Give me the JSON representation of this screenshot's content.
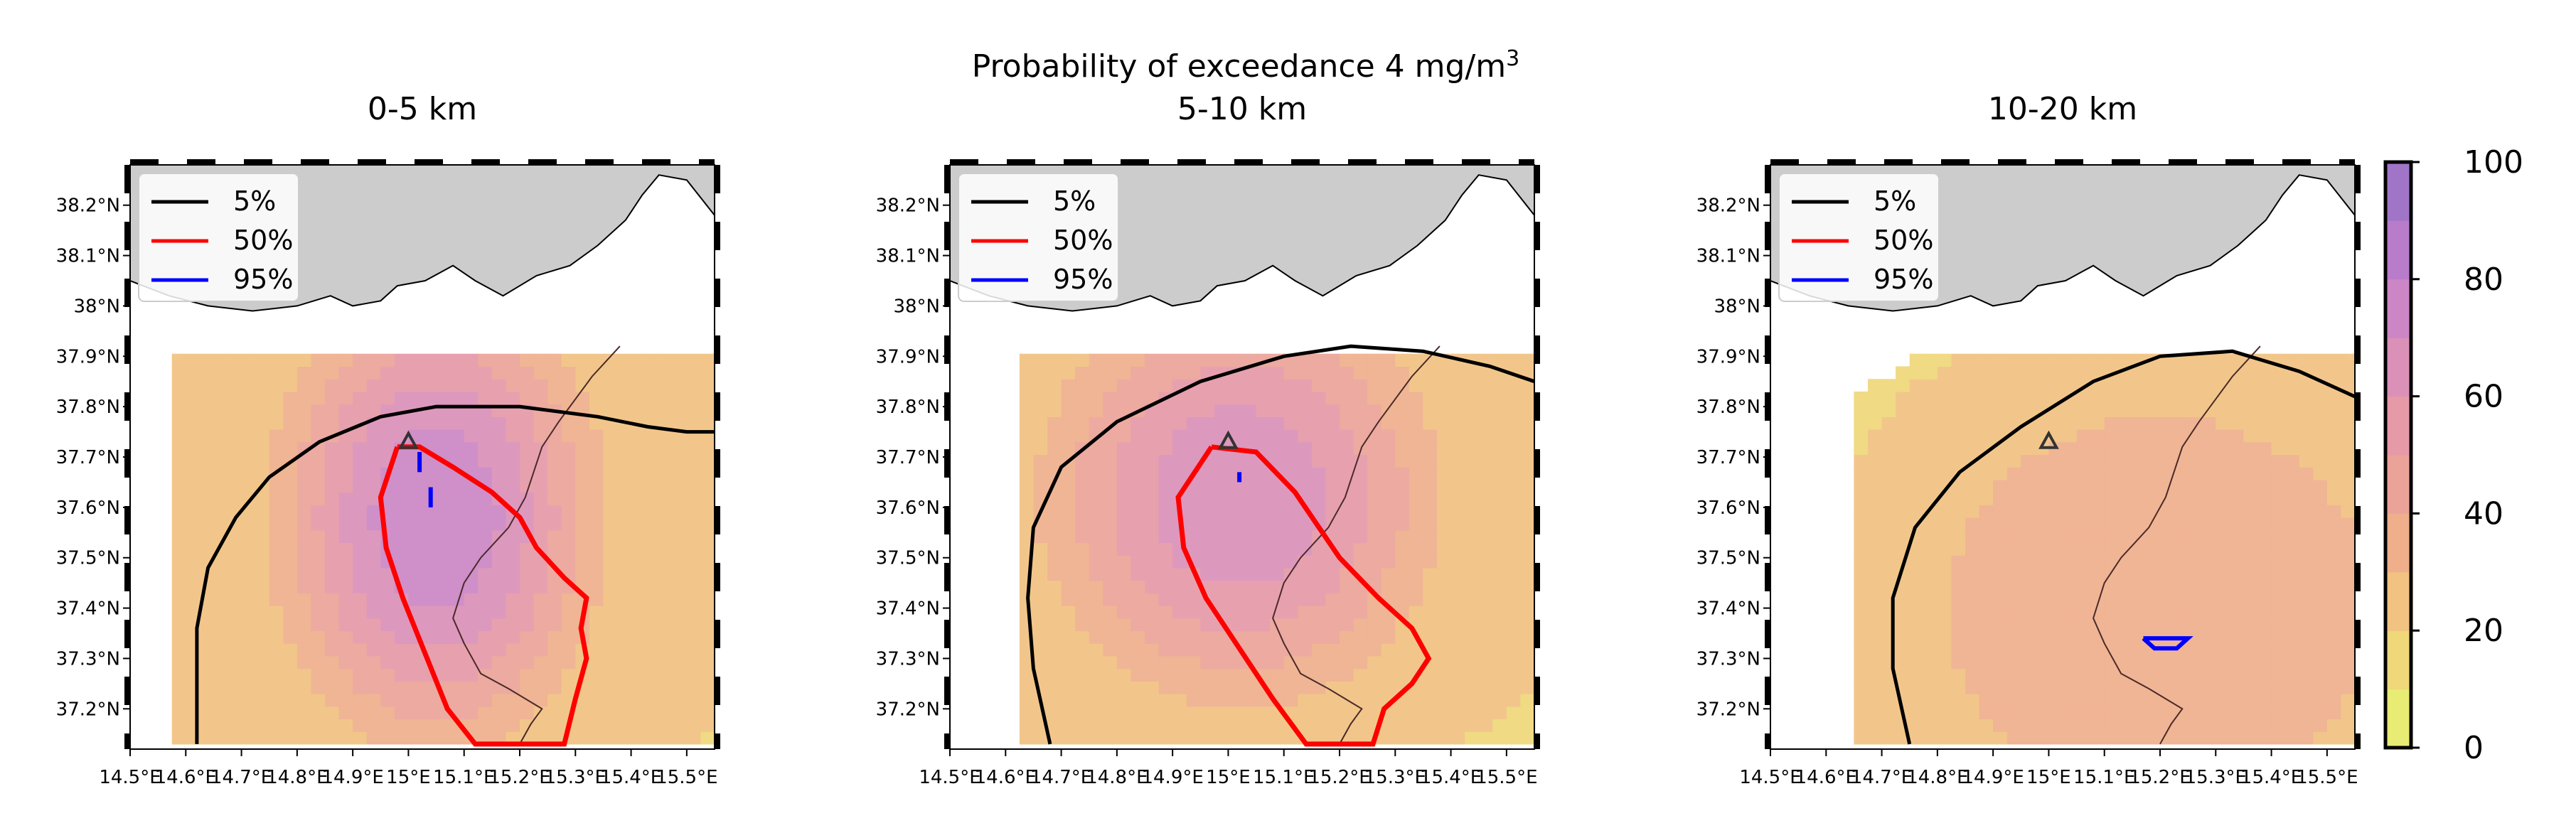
{
  "figure": {
    "suptitle": "Probability of exceedance 4 mg/m",
    "suptitle_superscript": "3"
  },
  "panels": [
    {
      "title": "0-5 km",
      "legend": [
        {
          "label": "5%",
          "color": "#000000"
        },
        {
          "label": "50%",
          "color": "#ff0000"
        },
        {
          "label": "95%",
          "color": "#0000ff"
        }
      ],
      "contours": {
        "p5": [
          [
            14.62,
            37.13
          ],
          [
            14.62,
            37.36
          ],
          [
            14.64,
            37.48
          ],
          [
            14.69,
            37.58
          ],
          [
            14.75,
            37.66
          ],
          [
            14.84,
            37.73
          ],
          [
            14.95,
            37.78
          ],
          [
            15.05,
            37.8
          ],
          [
            15.2,
            37.8
          ],
          [
            15.34,
            37.78
          ],
          [
            15.43,
            37.76
          ],
          [
            15.5,
            37.75
          ],
          [
            15.55,
            37.75
          ]
        ],
        "p50": [
          [
            14.98,
            37.72
          ],
          [
            15.02,
            37.72
          ],
          [
            15.08,
            37.68
          ],
          [
            15.15,
            37.63
          ],
          [
            15.2,
            37.58
          ],
          [
            15.23,
            37.52
          ],
          [
            15.28,
            37.46
          ],
          [
            15.32,
            37.42
          ],
          [
            15.31,
            37.36
          ],
          [
            15.32,
            37.3
          ],
          [
            15.3,
            37.22
          ],
          [
            15.28,
            37.13
          ],
          [
            15.12,
            37.13
          ],
          [
            15.07,
            37.2
          ],
          [
            15.03,
            37.31
          ],
          [
            14.99,
            37.42
          ],
          [
            14.96,
            37.52
          ],
          [
            14.95,
            37.62
          ],
          [
            14.98,
            37.72
          ]
        ],
        "p95_segments": [
          [
            [
              15.02,
              37.71
            ],
            [
              15.02,
              37.67
            ]
          ],
          [
            [
              15.04,
              37.64
            ],
            [
              15.04,
              37.6
            ]
          ]
        ]
      },
      "field": {
        "peak_lon": 15.05,
        "peak_lat": 37.58,
        "peak_value": 80,
        "decay_km_x": 0.22,
        "decay_km_y": 0.34,
        "shape": "elongated-south"
      }
    },
    {
      "title": "5-10 km",
      "legend": [
        {
          "label": "5%",
          "color": "#000000"
        },
        {
          "label": "50%",
          "color": "#ff0000"
        },
        {
          "label": "95%",
          "color": "#0000ff"
        }
      ],
      "contours": {
        "p5": [
          [
            14.68,
            37.13
          ],
          [
            14.65,
            37.28
          ],
          [
            14.64,
            37.42
          ],
          [
            14.65,
            37.56
          ],
          [
            14.7,
            37.68
          ],
          [
            14.8,
            37.77
          ],
          [
            14.95,
            37.85
          ],
          [
            15.1,
            37.9
          ],
          [
            15.22,
            37.92
          ],
          [
            15.35,
            37.91
          ],
          [
            15.47,
            37.88
          ],
          [
            15.55,
            37.85
          ]
        ],
        "p50": [
          [
            14.97,
            37.72
          ],
          [
            15.05,
            37.71
          ],
          [
            15.12,
            37.63
          ],
          [
            15.2,
            37.5
          ],
          [
            15.27,
            37.42
          ],
          [
            15.33,
            37.36
          ],
          [
            15.36,
            37.3
          ],
          [
            15.33,
            37.25
          ],
          [
            15.28,
            37.2
          ],
          [
            15.26,
            37.13
          ],
          [
            15.14,
            37.13
          ],
          [
            15.08,
            37.22
          ],
          [
            15.02,
            37.32
          ],
          [
            14.96,
            37.42
          ],
          [
            14.92,
            37.52
          ],
          [
            14.91,
            37.62
          ],
          [
            14.97,
            37.72
          ]
        ],
        "p95_segments": [
          [
            [
              15.02,
              37.67
            ],
            [
              15.02,
              37.65
            ]
          ]
        ]
      },
      "field": {
        "peak_lon": 15.02,
        "peak_lat": 37.62,
        "peak_value": 70,
        "decay_km_x": 0.28,
        "decay_km_y": 0.32,
        "shape": "round"
      }
    },
    {
      "title": "10-20 km",
      "legend": [
        {
          "label": "5%",
          "color": "#000000"
        },
        {
          "label": "50%",
          "color": "#ff0000"
        },
        {
          "label": "95%",
          "color": "#0000ff"
        }
      ],
      "contours": {
        "p5": [
          [
            14.75,
            37.13
          ],
          [
            14.72,
            37.28
          ],
          [
            14.72,
            37.42
          ],
          [
            14.76,
            37.56
          ],
          [
            14.84,
            37.67
          ],
          [
            14.95,
            37.76
          ],
          [
            15.08,
            37.85
          ],
          [
            15.2,
            37.9
          ],
          [
            15.33,
            37.91
          ],
          [
            15.45,
            37.87
          ],
          [
            15.55,
            37.82
          ]
        ],
        "p50": [],
        "p95_segments": [
          [
            [
              15.17,
              37.34
            ],
            [
              15.25,
              37.34
            ],
            [
              15.23,
              37.32
            ],
            [
              15.19,
              37.32
            ],
            [
              15.17,
              37.34
            ]
          ]
        ]
      },
      "field": {
        "peak_lon": 15.2,
        "peak_lat": 37.4,
        "peak_value": 38,
        "decay_km_x": 0.55,
        "decay_km_y": 0.55,
        "shape": "broad"
      }
    }
  ],
  "map": {
    "lon_range": [
      14.5,
      15.55
    ],
    "lat_range": [
      37.12,
      38.28
    ],
    "data_lon_range": [
      14.5,
      15.55
    ],
    "data_lat_range": [
      37.13,
      37.9
    ],
    "lon_ticks": [
      "14.5°E",
      "14.6°E",
      "14.7°E",
      "14.8°E",
      "14.9°E",
      "15°E",
      "15.1°E",
      "15.2°E",
      "15.3°E",
      "15.4°E",
      "15.5°E"
    ],
    "lon_tick_values": [
      14.5,
      14.6,
      14.7,
      14.8,
      14.9,
      15.0,
      15.1,
      15.2,
      15.3,
      15.4,
      15.5
    ],
    "lat_ticks": [
      "38.2°N",
      "38.1°N",
      "38°N",
      "37.9°N",
      "37.8°N",
      "37.7°N",
      "37.6°N",
      "37.5°N",
      "37.4°N",
      "37.3°N",
      "37.2°N"
    ],
    "lat_tick_values": [
      38.2,
      38.1,
      38.0,
      37.9,
      37.8,
      37.7,
      37.6,
      37.5,
      37.4,
      37.3,
      37.2
    ],
    "land_color": "#cccccc",
    "volcano": {
      "lon": 15.0,
      "lat": 37.73,
      "marker": "triangle"
    },
    "calabria_coast": [
      [
        14.5,
        38.28
      ],
      [
        15.55,
        38.28
      ],
      [
        15.55,
        38.18
      ],
      [
        15.5,
        38.25
      ],
      [
        15.45,
        38.26
      ],
      [
        15.42,
        38.22
      ],
      [
        15.39,
        38.17
      ],
      [
        15.34,
        38.12
      ],
      [
        15.29,
        38.08
      ],
      [
        15.23,
        38.06
      ],
      [
        15.17,
        38.02
      ],
      [
        15.12,
        38.05
      ],
      [
        15.08,
        38.08
      ],
      [
        15.03,
        38.05
      ],
      [
        14.98,
        38.04
      ],
      [
        14.95,
        38.01
      ],
      [
        14.9,
        38.0
      ],
      [
        14.86,
        38.02
      ],
      [
        14.8,
        38.0
      ],
      [
        14.72,
        37.99
      ],
      [
        14.64,
        38.0
      ],
      [
        14.57,
        38.02
      ],
      [
        14.5,
        38.05
      ]
    ],
    "sicily_coast": [
      [
        15.38,
        37.92
      ],
      [
        15.33,
        37.86
      ],
      [
        15.27,
        37.77
      ],
      [
        15.24,
        37.72
      ],
      [
        15.21,
        37.62
      ],
      [
        15.18,
        37.56
      ],
      [
        15.13,
        37.5
      ],
      [
        15.1,
        37.45
      ],
      [
        15.08,
        37.38
      ],
      [
        15.1,
        37.33
      ],
      [
        15.13,
        37.27
      ],
      [
        15.18,
        37.24
      ],
      [
        15.21,
        37.22
      ],
      [
        15.24,
        37.2
      ],
      [
        15.22,
        37.17
      ],
      [
        15.2,
        37.13
      ]
    ]
  },
  "colorbar": {
    "min": 0,
    "max": 100,
    "ticks": [
      "0",
      "20",
      "40",
      "60",
      "80",
      "100"
    ],
    "tick_values": [
      0,
      20,
      40,
      60,
      80,
      100
    ],
    "levels": [
      0,
      10,
      20,
      30,
      40,
      50,
      60,
      70,
      80,
      90,
      100
    ],
    "colors": [
      "#e8ec74",
      "#efd77a",
      "#f1c281",
      "#efaf8b",
      "#eba399",
      "#e69aa8",
      "#db90b8",
      "#cc86c5",
      "#b87ccb",
      "#a075c8"
    ]
  }
}
